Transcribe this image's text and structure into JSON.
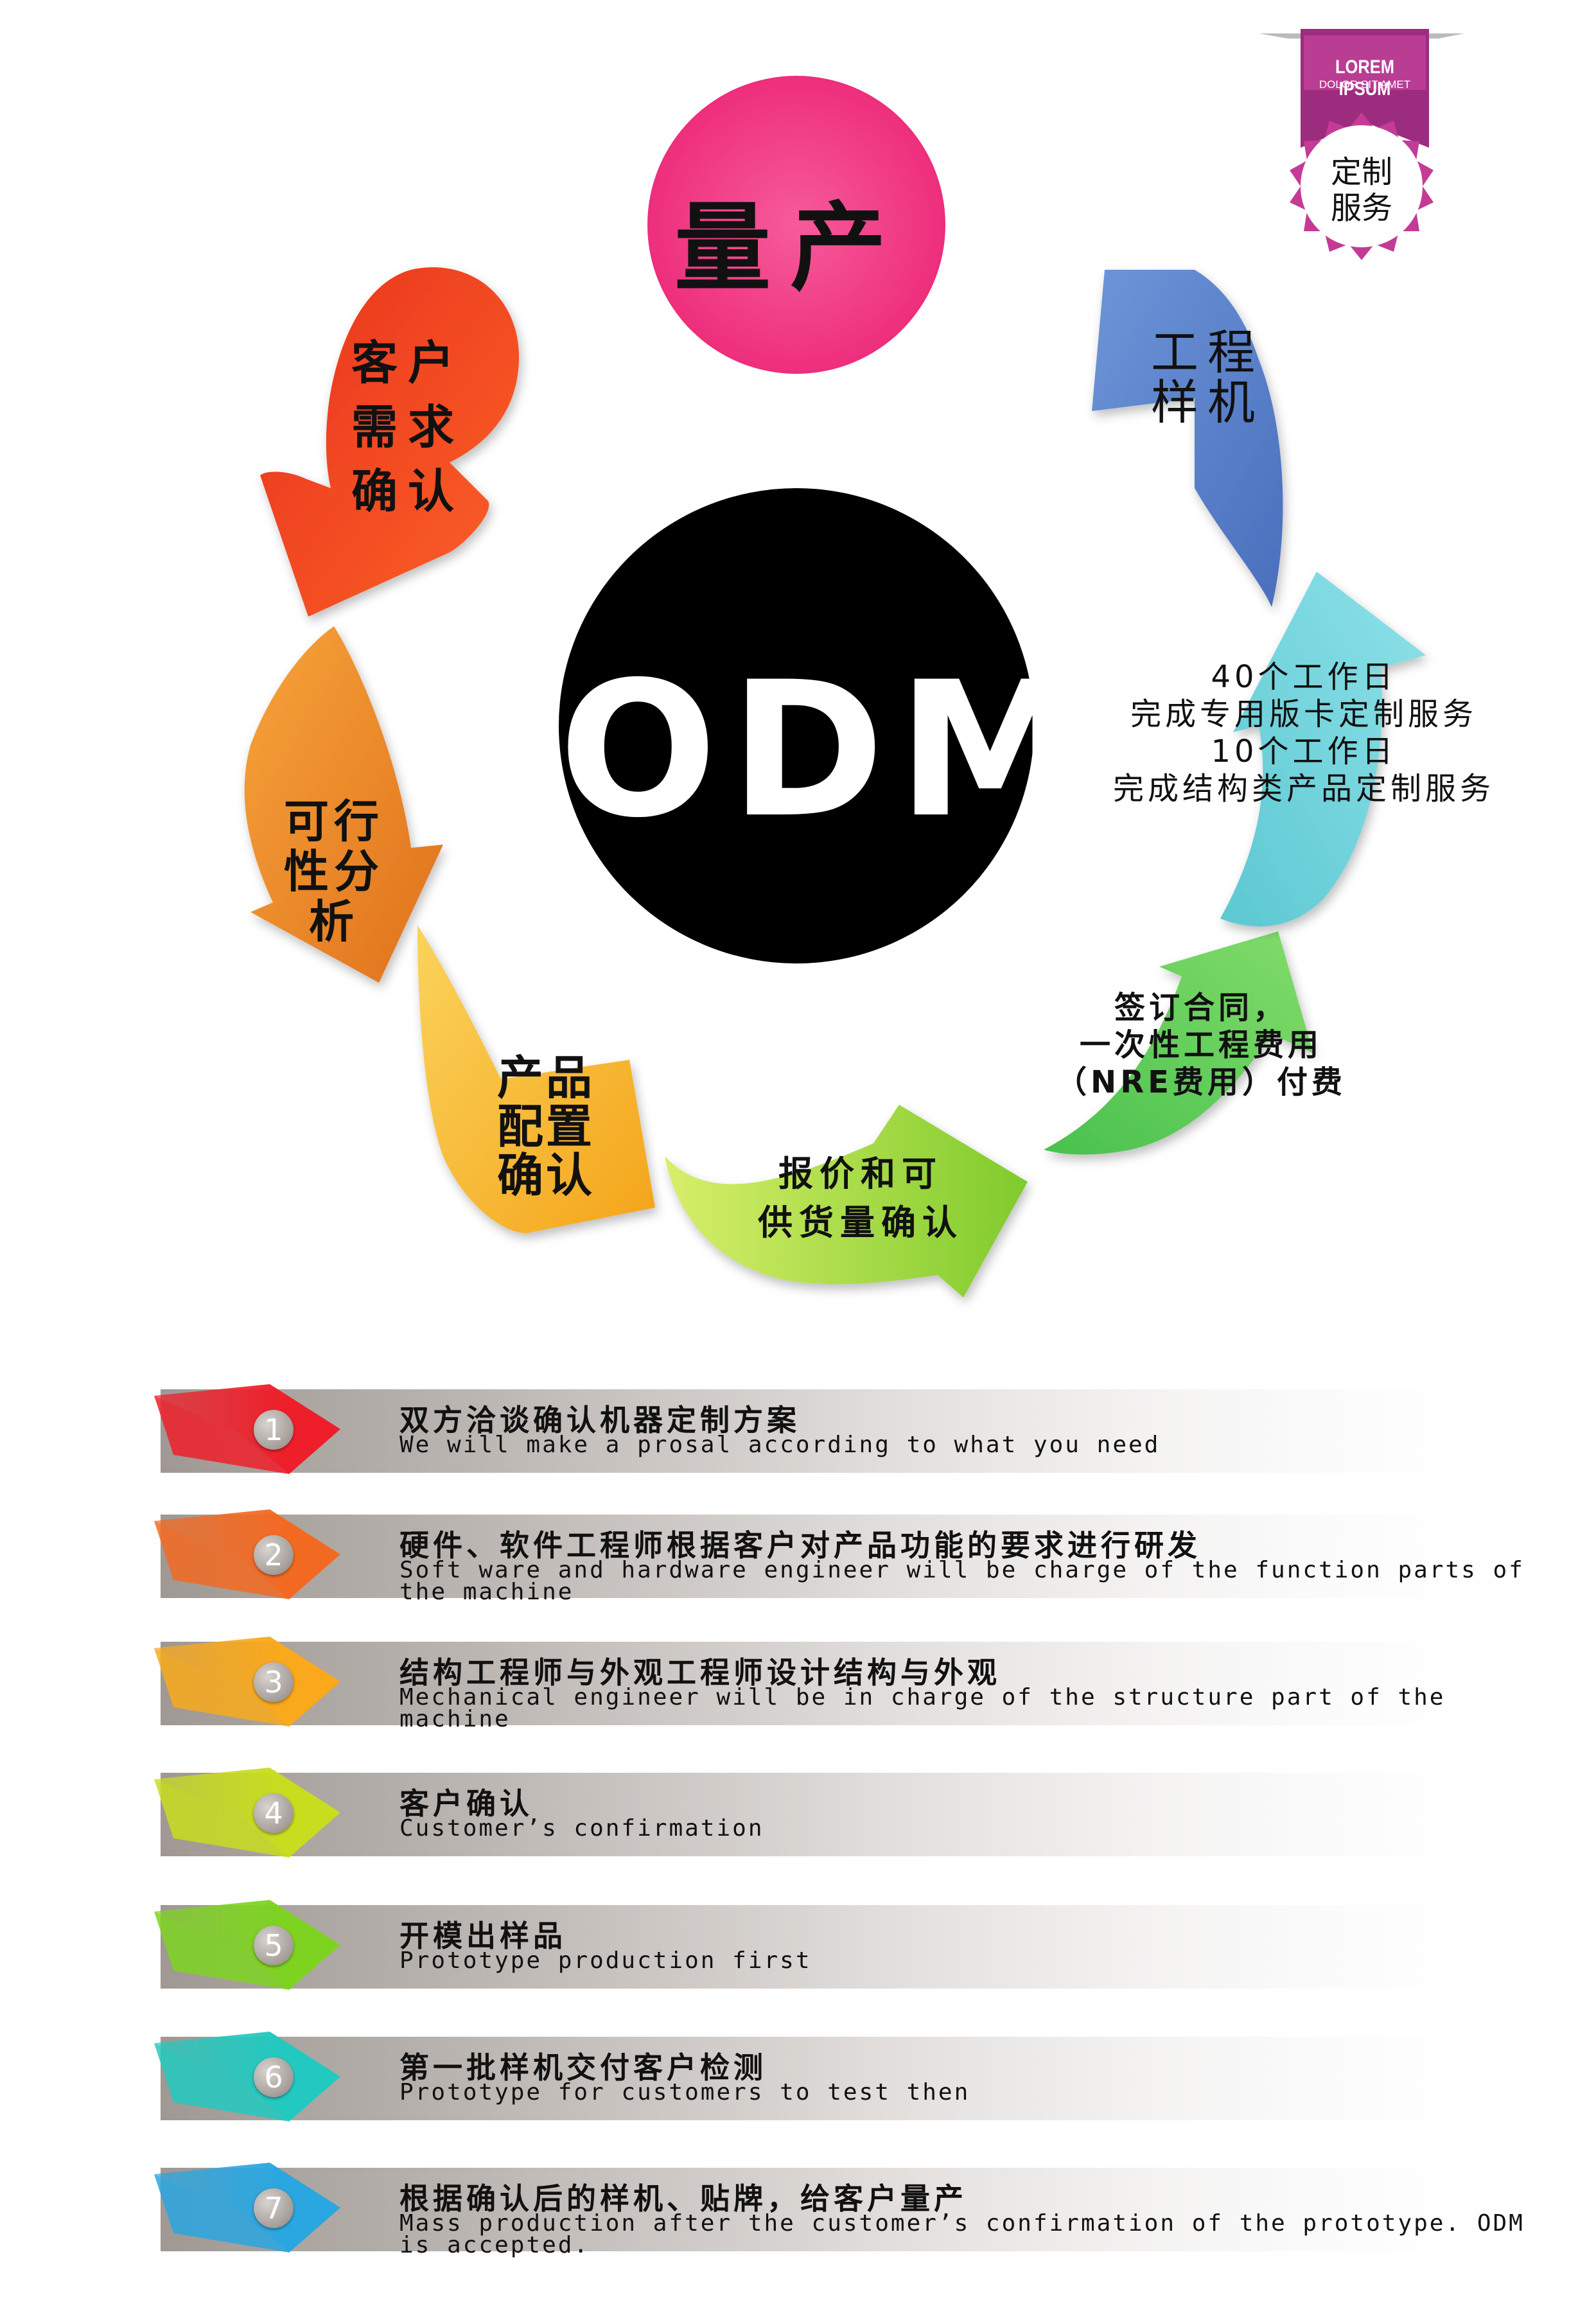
{
  "center": {
    "title": "ODM"
  },
  "mass_production": {
    "label": "量产"
  },
  "badge": {
    "ribbon_title": "LOREM IPSUM",
    "ribbon_sub": "DOLOR SIT AMET",
    "text_line1": "定制",
    "text_line2": "服务"
  },
  "cycle": [
    {
      "lines": [
        "客户",
        "需求",
        "确认"
      ],
      "color": "#f04a1e"
    },
    {
      "lines": [
        "可行",
        "性分",
        "析"
      ],
      "color": "#ee8420"
    },
    {
      "lines": [
        "产品",
        "配置",
        "确认"
      ],
      "color": "#f7ad1e"
    },
    {
      "lines": [
        "报价和可",
        "供货量确认"
      ],
      "color": "#9fd83a"
    },
    {
      "lines": [
        "签订合同，",
        "一次性工程费用",
        "（NRE费用）付费"
      ],
      "color": "#4fc84b"
    },
    {
      "lines": [
        "40个工作日",
        "完成专用版卡定制服务",
        "10个工作日",
        "完成结构类产品定制服务"
      ],
      "color": "#56c6cf"
    },
    {
      "lines": [
        "工程",
        "样机"
      ],
      "color": "#5a80c8"
    }
  ],
  "steps": [
    {
      "num": "1",
      "title": "双方洽谈确认机器定制方案",
      "desc": "We will make a prosal according to what you need",
      "color": "#ee1f2a"
    },
    {
      "num": "2",
      "title": "硬件、软件工程师根据客户对产品功能的要求进行研发",
      "desc": "Soft ware and hardware engineer will be charge of the function parts of the machine",
      "color": "#f26a22"
    },
    {
      "num": "3",
      "title": "结构工程师与外观工程师设计结构与外观",
      "desc": "Mechanical engineer will be in charge of the structure part of the machine",
      "color": "#f9a91b"
    },
    {
      "num": "4",
      "title": "客户确认",
      "desc": "Customer’s confirmation",
      "color": "#c8dd1e"
    },
    {
      "num": "5",
      "title": "开模出样品",
      "desc": "Prototype production first",
      "color": "#7ed321"
    },
    {
      "num": "6",
      "title": "第一批样机交付客户检测",
      "desc": "Prototype for customers to test then",
      "color": "#22c9c0"
    },
    {
      "num": "7",
      "title": "根据确认后的样机、贴牌，给客户量产",
      "desc": "Mass production after the customer’s confirmation of the prototype. ODM is accepted.",
      "color": "#2aa6e0"
    }
  ]
}
